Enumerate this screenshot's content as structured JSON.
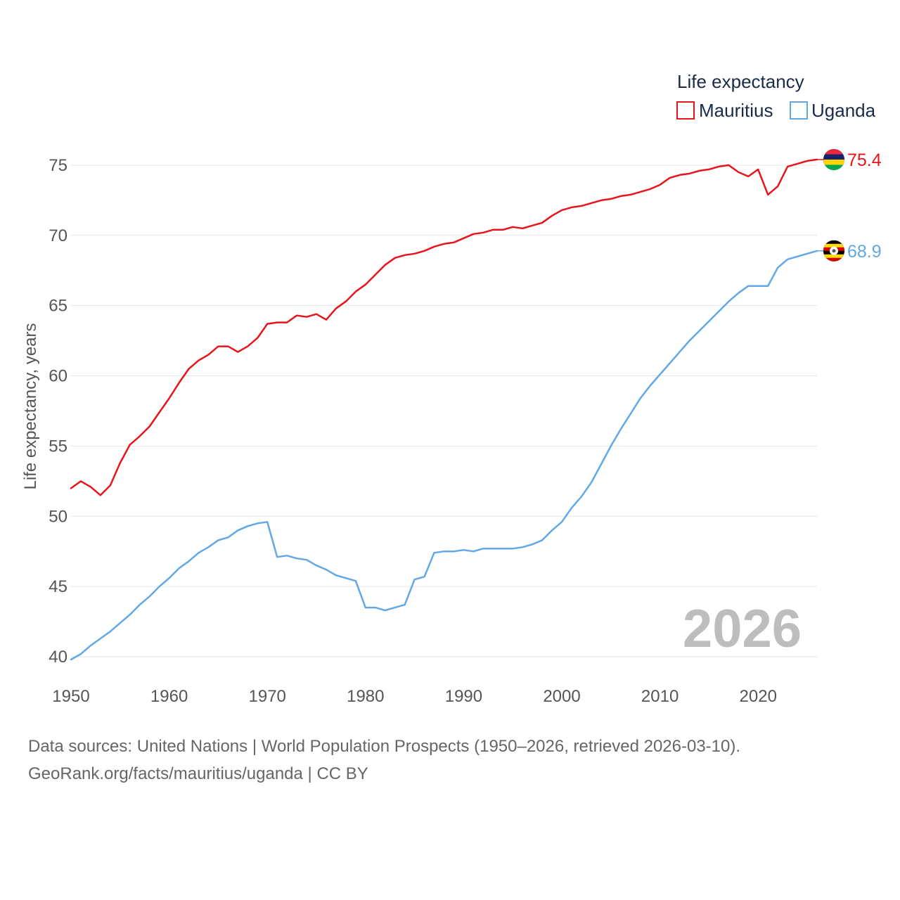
{
  "chart_data": {
    "type": "line",
    "title": "",
    "legend_title": "Life expectancy",
    "legend_position": "top-right",
    "ylabel": "Life expectancy, years",
    "xlabel": "",
    "xlim": [
      1950,
      2026
    ],
    "ylim": [
      38.2,
      77.6
    ],
    "x_ticks": [
      1950,
      1960,
      1970,
      1980,
      1990,
      2000,
      2010,
      2020
    ],
    "y_ticks": [
      40,
      45,
      50,
      55,
      60,
      65,
      70,
      75
    ],
    "grid": true,
    "year_label": "2026",
    "x": [
      1950,
      1951,
      1952,
      1953,
      1954,
      1955,
      1956,
      1957,
      1958,
      1959,
      1960,
      1961,
      1962,
      1963,
      1964,
      1965,
      1966,
      1967,
      1968,
      1969,
      1970,
      1971,
      1972,
      1973,
      1974,
      1975,
      1976,
      1977,
      1978,
      1979,
      1980,
      1981,
      1982,
      1983,
      1984,
      1985,
      1986,
      1987,
      1988,
      1989,
      1990,
      1991,
      1992,
      1993,
      1994,
      1995,
      1996,
      1997,
      1998,
      1999,
      2000,
      2001,
      2002,
      2003,
      2004,
      2005,
      2006,
      2007,
      2008,
      2009,
      2010,
      2011,
      2012,
      2013,
      2014,
      2015,
      2016,
      2017,
      2018,
      2019,
      2020,
      2021,
      2022,
      2023,
      2024,
      2025,
      2026
    ],
    "series": [
      {
        "name": "Mauritius",
        "color": "#e8141c",
        "end_label": "75.4",
        "flag": "mauritius-flag-icon",
        "values": [
          52.0,
          52.5,
          52.1,
          51.5,
          52.2,
          53.8,
          55.1,
          55.7,
          56.4,
          57.4,
          58.4,
          59.5,
          60.5,
          61.1,
          61.5,
          62.1,
          62.1,
          61.7,
          62.1,
          62.7,
          63.7,
          63.8,
          63.8,
          64.3,
          64.2,
          64.4,
          64.0,
          64.8,
          65.3,
          66.0,
          66.5,
          67.2,
          67.9,
          68.4,
          68.6,
          68.7,
          68.9,
          69.2,
          69.4,
          69.5,
          69.8,
          70.1,
          70.2,
          70.4,
          70.4,
          70.6,
          70.5,
          70.7,
          70.9,
          71.4,
          71.8,
          72.0,
          72.1,
          72.3,
          72.5,
          72.6,
          72.8,
          72.9,
          73.1,
          73.3,
          73.6,
          74.1,
          74.3,
          74.4,
          74.6,
          74.7,
          74.9,
          75.0,
          74.5,
          74.2,
          74.7,
          72.9,
          73.5,
          74.9,
          75.1,
          75.3,
          75.4
        ]
      },
      {
        "name": "Uganda",
        "color": "#62a8e6",
        "end_label": "68.9",
        "flag": "uganda-flag-icon",
        "values": [
          39.8,
          40.2,
          40.8,
          41.3,
          41.8,
          42.4,
          43.0,
          43.7,
          44.3,
          45.0,
          45.6,
          46.3,
          46.8,
          47.4,
          47.8,
          48.3,
          48.5,
          49.0,
          49.3,
          49.5,
          49.6,
          47.1,
          47.2,
          47.0,
          46.9,
          46.5,
          46.2,
          45.8,
          45.6,
          45.4,
          43.5,
          43.5,
          43.3,
          43.5,
          43.7,
          45.5,
          45.7,
          47.4,
          47.5,
          47.5,
          47.6,
          47.5,
          47.7,
          47.7,
          47.7,
          47.7,
          47.8,
          48.0,
          48.3,
          49.0,
          49.6,
          50.6,
          51.4,
          52.4,
          53.7,
          55.0,
          56.2,
          57.3,
          58.4,
          59.3,
          60.1,
          60.9,
          61.7,
          62.5,
          63.2,
          63.9,
          64.6,
          65.3,
          65.9,
          66.4,
          66.4,
          66.4,
          67.7,
          68.3,
          68.5,
          68.7,
          68.9
        ]
      }
    ]
  },
  "footer": {
    "line1": "Data sources: United Nations | World Population Prospects (1950–2026, retrieved 2026-03-10).",
    "line2": "GeoRank.org/facts/mauritius/uganda | CC BY"
  }
}
